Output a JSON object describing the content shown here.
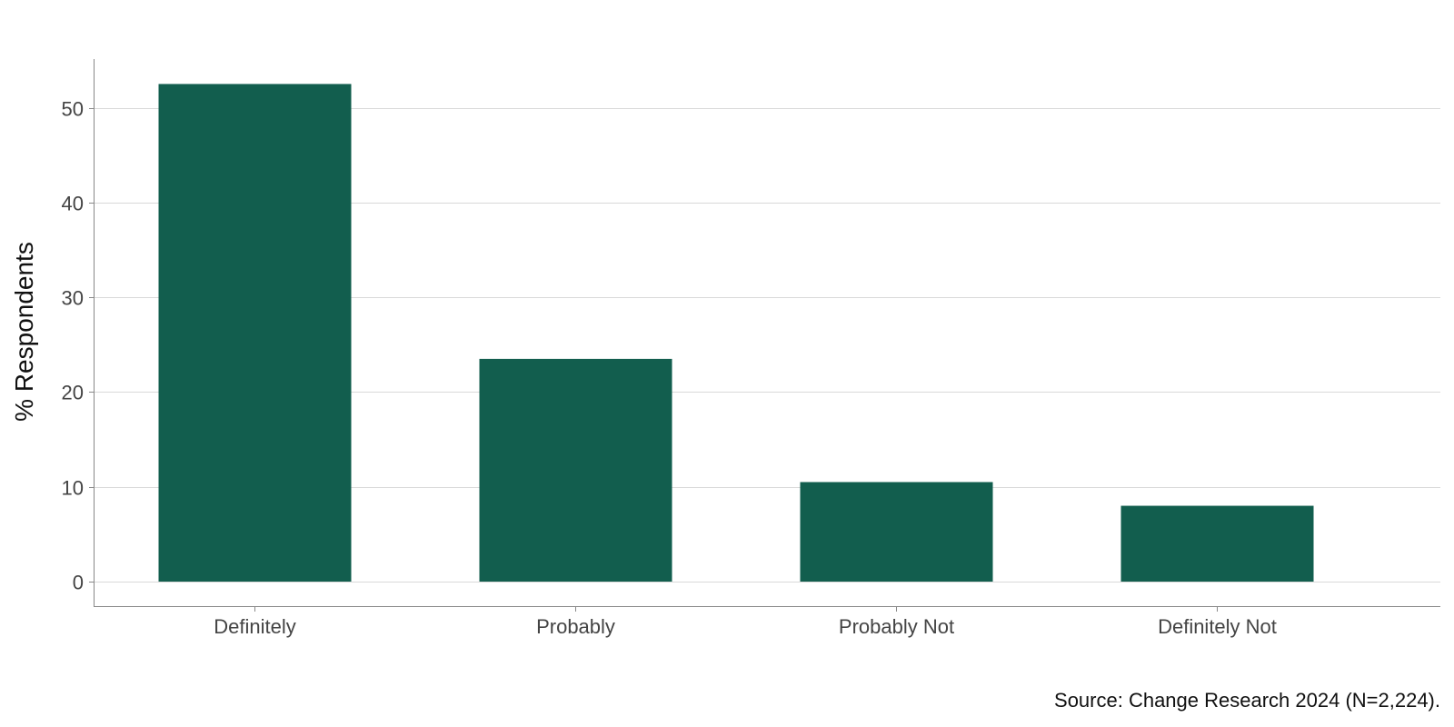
{
  "chart_data": {
    "type": "bar",
    "categories": [
      "Definitely",
      "Probably",
      "Probably Not",
      "Definitely Not"
    ],
    "values": [
      52.5,
      23.5,
      10.5,
      8.0
    ],
    "ylabel": "% Respondents",
    "xlabel": "",
    "ylim": [
      0,
      55
    ],
    "yticks": [
      0,
      10,
      20,
      30,
      40,
      50
    ],
    "grid": "horizontal",
    "bar_color": "#125e4e",
    "source": "Source: Change Research 2024 (N=2,224)."
  }
}
